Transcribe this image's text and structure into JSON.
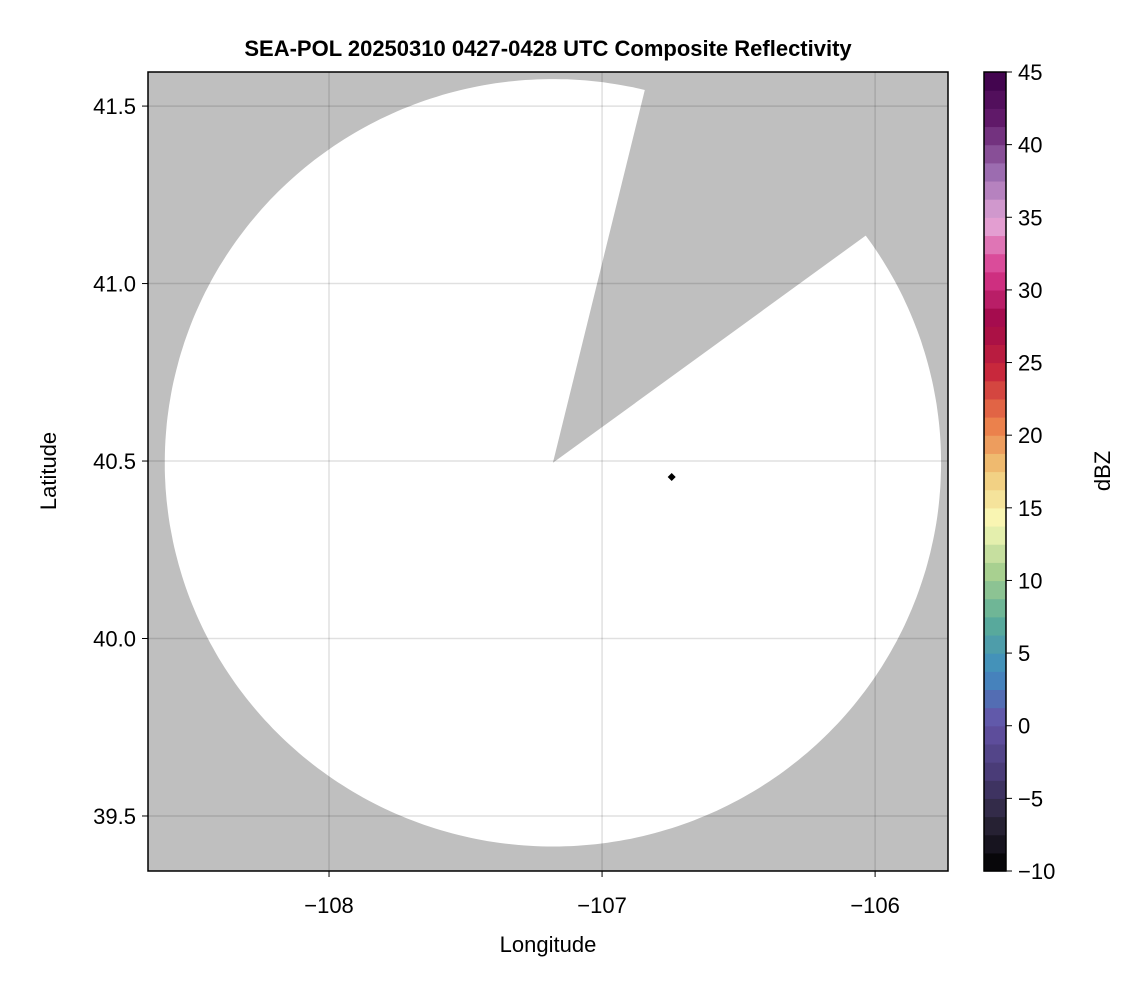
{
  "chart_data": {
    "type": "heatmap",
    "title": "SEA-POL 20250310 0427-0428 UTC Composite Reflectivity",
    "xlabel": "Longitude",
    "ylabel": "Latitude",
    "xlim": [
      -108.663,
      -105.733
    ],
    "ylim": [
      39.345,
      41.596
    ],
    "xticks": [
      -108,
      -107,
      -106
    ],
    "xtick_labels": [
      "−108",
      "−107",
      "−106"
    ],
    "yticks": [
      39.5,
      40.0,
      40.5,
      41.0,
      41.5
    ],
    "ytick_labels": [
      "39.5",
      "40.0",
      "40.5",
      "41.0",
      "41.5"
    ],
    "grid": true,
    "background_color": "#bfbfbf",
    "no_echo_color": "#ffffff",
    "radar_coverage": {
      "center_lon": -107.18,
      "center_lat": 40.495,
      "range_km": 120,
      "blocked_sector_azimuth_deg": [
        13.7,
        53.7
      ]
    },
    "markers": [
      {
        "lon": -106.745,
        "lat": 40.455,
        "shape": "diamond",
        "color": "#000000"
      }
    ],
    "reflectivity_values": "none above -10 dBZ displayed",
    "colorbar": {
      "label": "dBZ",
      "range": [
        -10,
        45
      ],
      "step": 1.25,
      "ticks": [
        -10,
        -5,
        0,
        5,
        10,
        15,
        20,
        25,
        30,
        35,
        40,
        45
      ],
      "tick_labels": [
        "−10",
        "−5",
        "0",
        "5",
        "10",
        "15",
        "20",
        "25",
        "30",
        "35",
        "40",
        "45"
      ],
      "colormap_stops": [
        "#000000",
        "#2a2438",
        "#4a3c78",
        "#6454a8",
        "#3f8cc0",
        "#5aac98",
        "#a8d090",
        "#fafab8",
        "#f0c878",
        "#ea7a48",
        "#c8283c",
        "#a00848",
        "#d8388c",
        "#e4a8d8",
        "#9c6cb0",
        "#641c6c",
        "#3c0048"
      ],
      "position": "right"
    }
  }
}
